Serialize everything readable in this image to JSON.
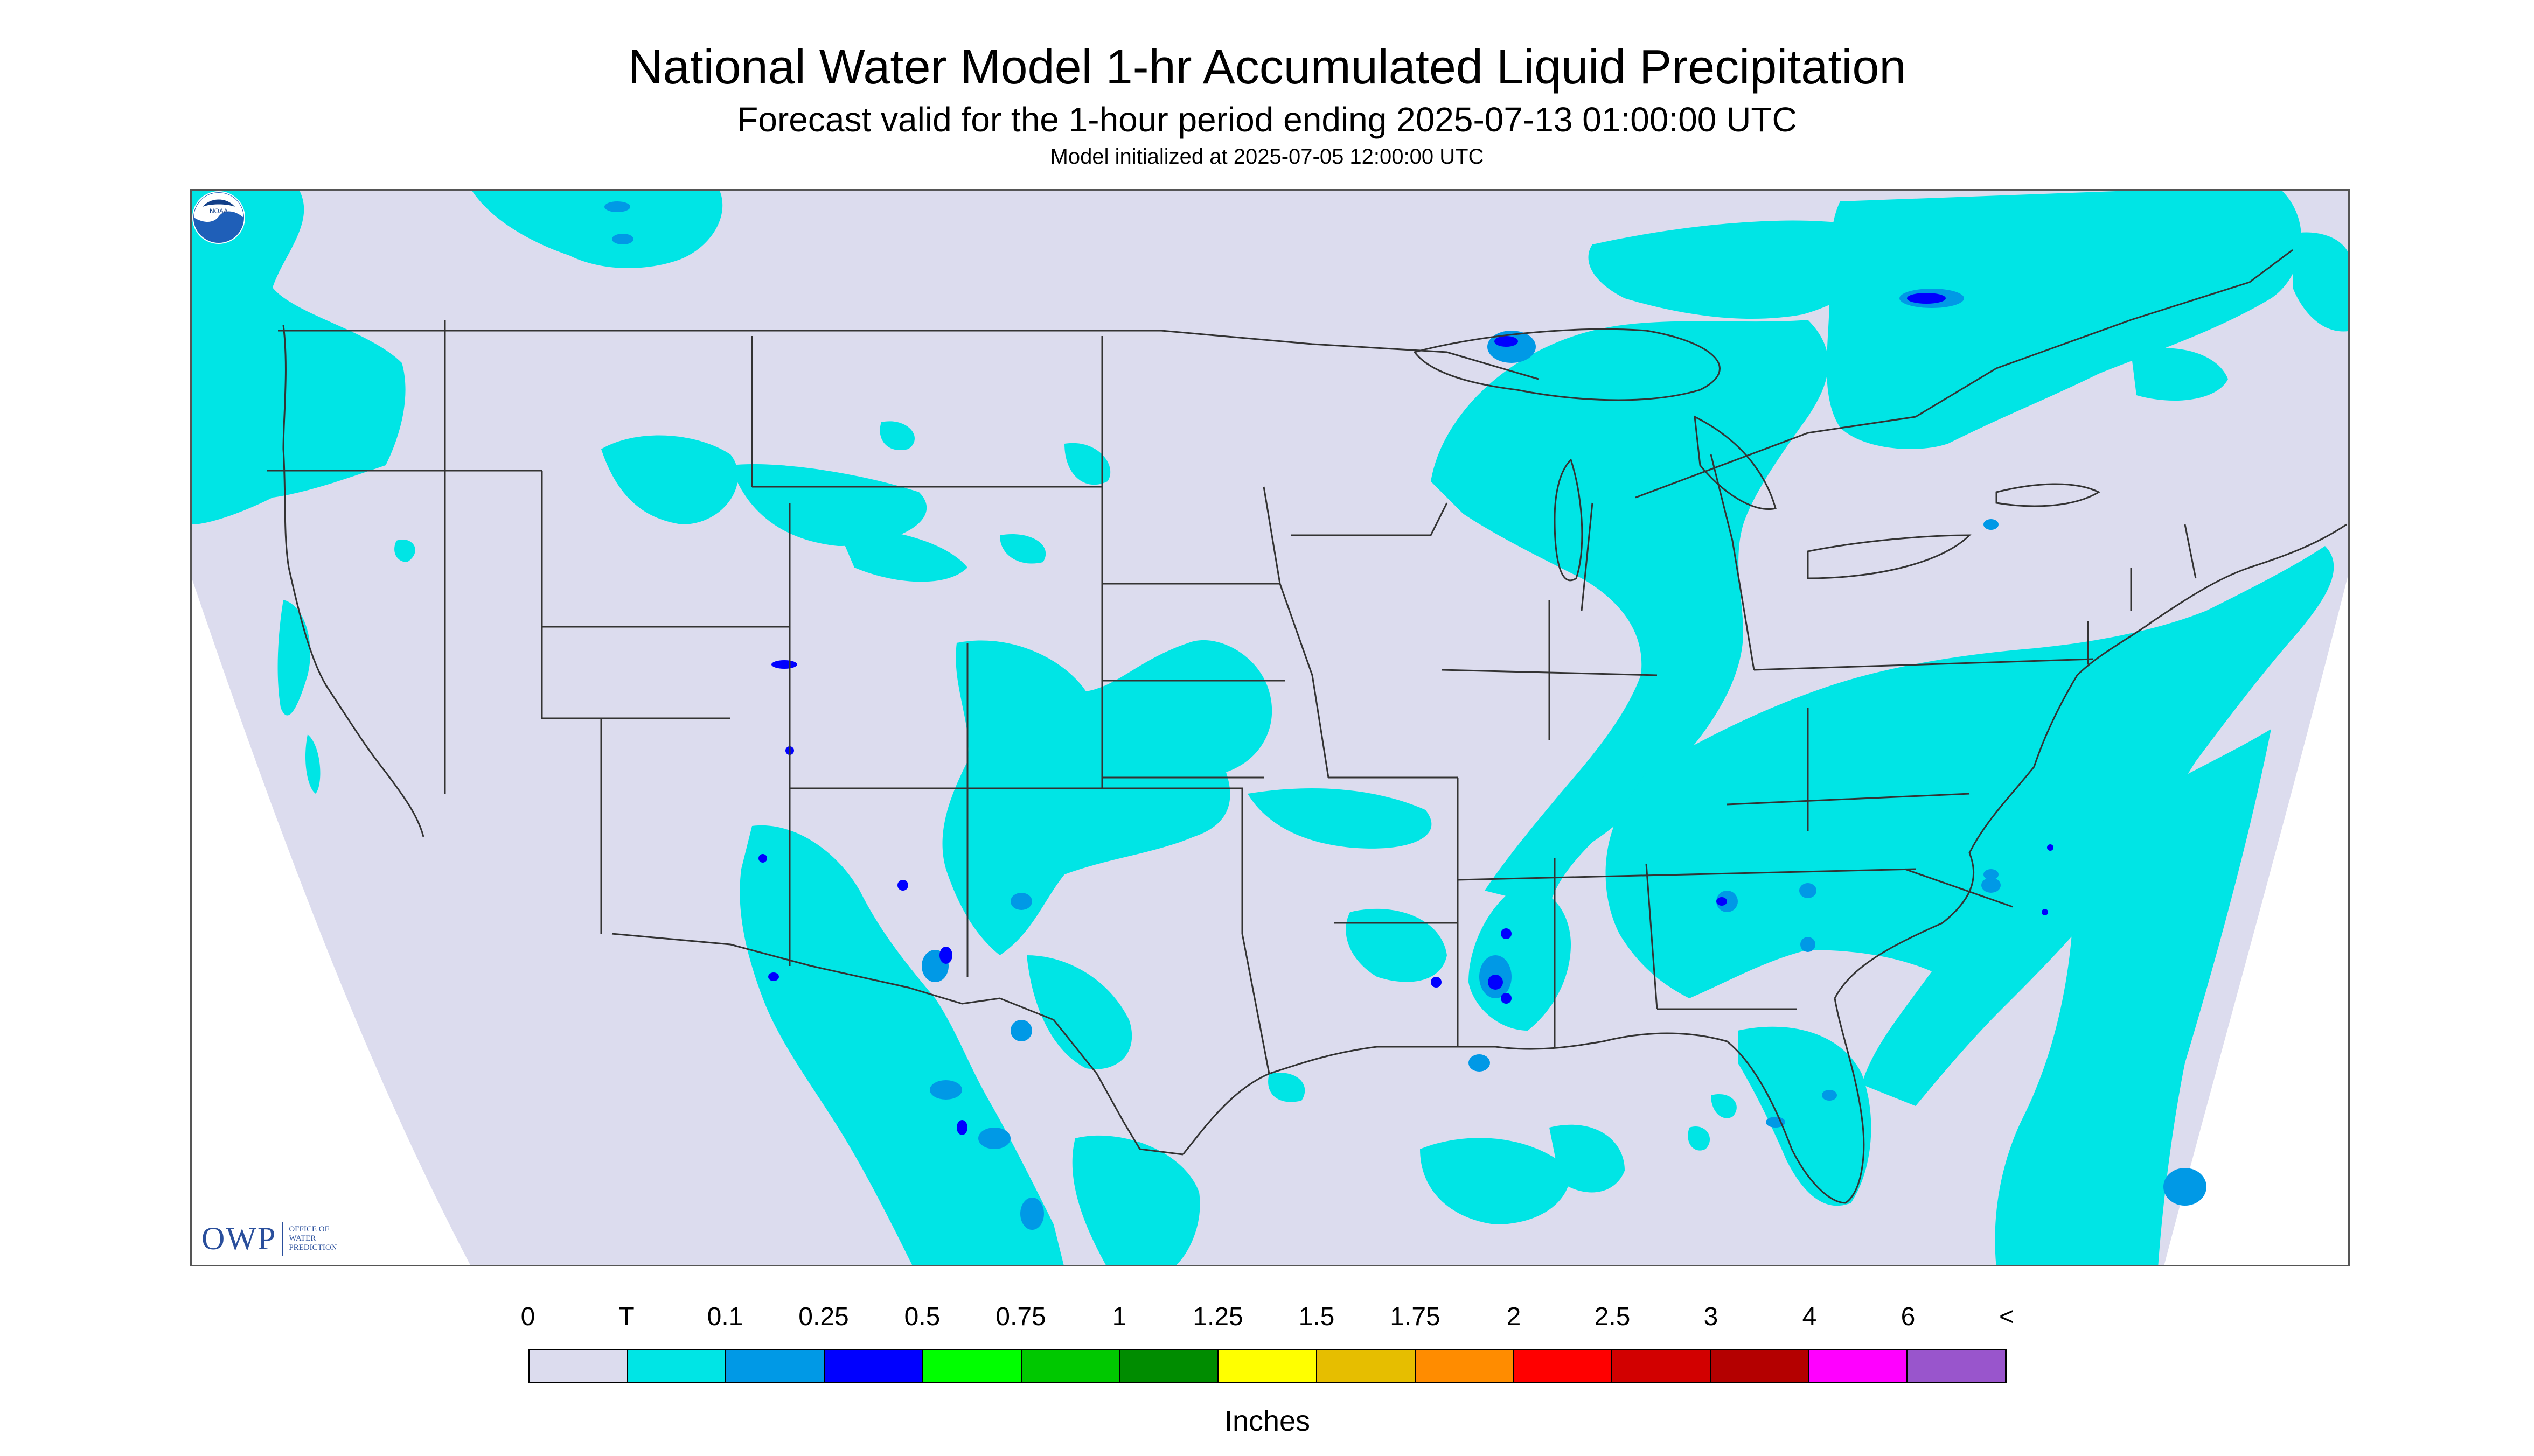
{
  "header": {
    "title": "National Water Model 1-hr Accumulated Liquid Precipitation",
    "subtitle": "Forecast valid for the 1-hour period ending 2025-07-13 01:00:00 UTC",
    "model_init": "Model initialized at 2025-07-05 12:00:00 UTC"
  },
  "logos": {
    "owp_mark": "OWP",
    "owp_text_line1": "OFFICE OF",
    "owp_text_line2": "WATER",
    "owp_text_line3": "PREDICTION",
    "noaa_text": "NOAA"
  },
  "colors": {
    "no_data": "#dcdcee",
    "trace": "#00e5e5",
    "light_blue": "#0099e6",
    "blue": "#0000ff",
    "border_lines": "#333333"
  },
  "legend": {
    "units": "Inches",
    "labels": [
      "0",
      "T",
      "0.1",
      "0.25",
      "0.5",
      "0.75",
      "1",
      "1.25",
      "1.5",
      "1.75",
      "2",
      "2.5",
      "3",
      "4",
      "6",
      "<"
    ],
    "swatch_colors": [
      "#dcdcee",
      "#00e5e5",
      "#0099e6",
      "#0000ff",
      "#00ff00",
      "#00c800",
      "#008c00",
      "#ffff00",
      "#e6be00",
      "#ff8c00",
      "#ff0000",
      "#d20000",
      "#b40000",
      "#ff00ff",
      "#9955cc"
    ]
  }
}
